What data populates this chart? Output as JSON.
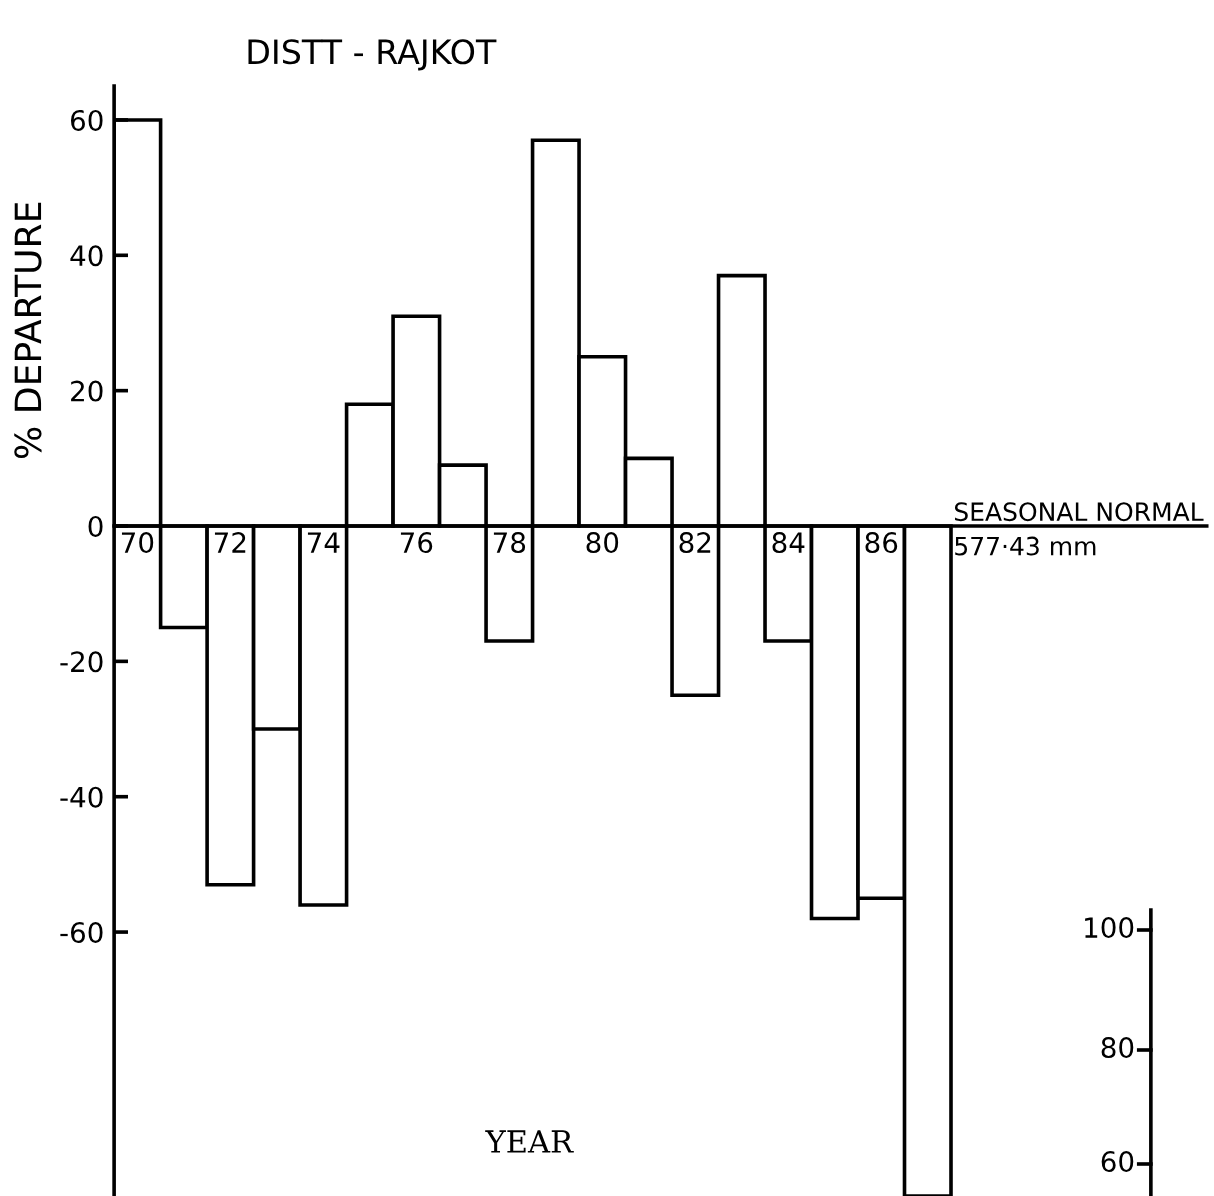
{
  "chart_data": {
    "type": "bar",
    "title": "DISTT - RAJKOT",
    "ylabel": "% DEPARTURE",
    "xlabel": "YEAR",
    "categories": [
      "70",
      null,
      "72",
      null,
      "74",
      null,
      "76",
      null,
      "78",
      null,
      "80",
      null,
      "82",
      null,
      "84",
      null,
      "86",
      null
    ],
    "values": [
      60,
      -15,
      -53,
      -30,
      -56,
      18,
      31,
      9,
      -17,
      57,
      25,
      10,
      -25,
      37,
      -17,
      -58,
      -55,
      -99
    ],
    "color": "#ffffff",
    "ylim": [
      -99,
      65
    ],
    "yticks": [
      -60,
      -40,
      -20,
      0,
      20,
      40,
      60
    ],
    "grid": false,
    "annotations": [
      "SEASONAL NORMAL",
      "577·43 mm",
      "100",
      "80",
      "60"
    ]
  }
}
